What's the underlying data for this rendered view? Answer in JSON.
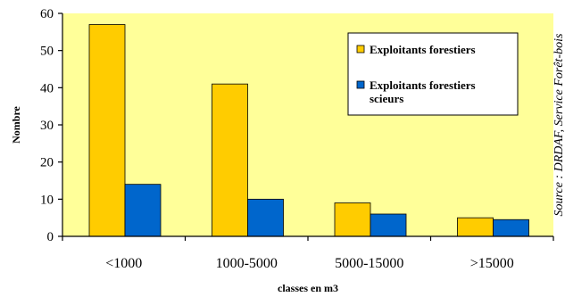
{
  "chart_data": {
    "type": "bar",
    "categories": [
      "<1000",
      "1000-5000",
      "5000-15000",
      ">15000"
    ],
    "series": [
      {
        "name": "Exploitants forestiers",
        "values": [
          57,
          41,
          9,
          5
        ],
        "color": "#FFCC00"
      },
      {
        "name": "Exploitants forestiers scieurs",
        "values": [
          14,
          10,
          6,
          4.5
        ],
        "color": "#0066CC"
      }
    ],
    "xlabel": "classes en m3",
    "ylabel": "Nombre",
    "ylim": [
      0,
      60
    ],
    "yticks": [
      0,
      10,
      20,
      30,
      40,
      50,
      60
    ],
    "plot_background": "#FFFF99",
    "legend_lines": [
      [
        "Exploitants forestiers"
      ],
      [
        "Exploitants forestiers",
        "scieurs"
      ]
    ],
    "source": "Source : DRDAF, Service Forêt-bois",
    "grid": false,
    "legend_position": "top-right"
  }
}
